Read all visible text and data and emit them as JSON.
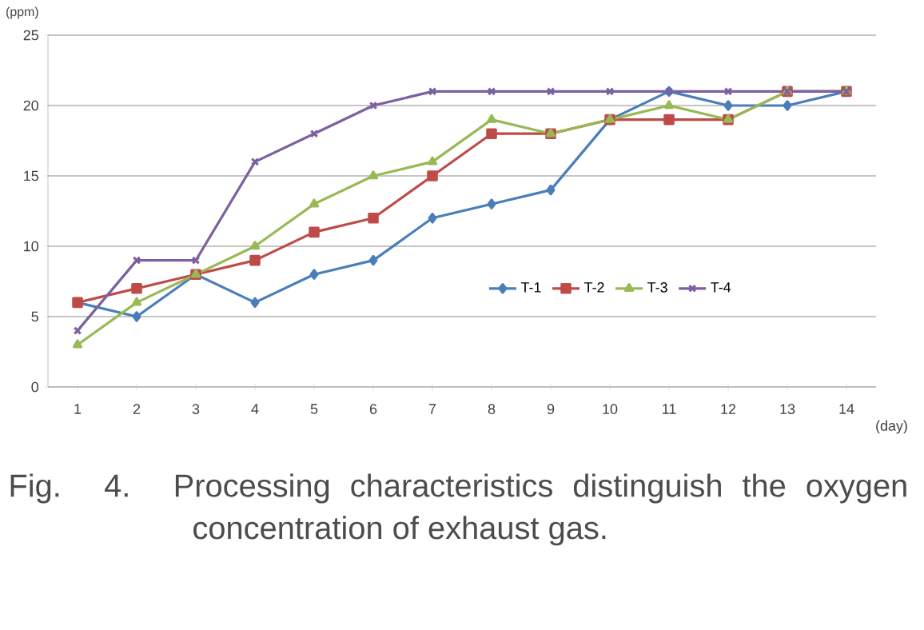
{
  "chart_data": {
    "type": "line",
    "xlabel": "(day)",
    "ylabel": "(ppm)",
    "categories": [
      "1",
      "2",
      "3",
      "4",
      "5",
      "6",
      "7",
      "8",
      "9",
      "10",
      "11",
      "12",
      "13",
      "14"
    ],
    "series": [
      {
        "name": "T-1",
        "color": "#4a7ebb",
        "marker": "diamond",
        "values": [
          6,
          5,
          8,
          6,
          8,
          9,
          12,
          13,
          14,
          19,
          21,
          20,
          20,
          21
        ]
      },
      {
        "name": "T-2",
        "color": "#be4b48",
        "marker": "square",
        "values": [
          6,
          7,
          8,
          9,
          11,
          12,
          15,
          18,
          18,
          19,
          19,
          19,
          21,
          21
        ]
      },
      {
        "name": "T-3",
        "color": "#98b954",
        "marker": "triangle",
        "values": [
          3,
          6,
          8,
          10,
          13,
          15,
          16,
          19,
          18,
          19,
          20,
          19,
          21,
          21
        ]
      },
      {
        "name": "T-4",
        "color": "#7d60a0",
        "marker": "cross",
        "values": [
          4,
          9,
          9,
          16,
          18,
          20,
          21,
          21,
          21,
          21,
          21,
          21,
          21,
          21
        ]
      }
    ],
    "ylim": [
      0,
      25
    ],
    "yticks": [
      0,
      5,
      10,
      15,
      20,
      25
    ],
    "grid": "y",
    "legend": "bottom right",
    "annotations": [
      "Fig. 4. Processing characteristics distinguish the oxygen concentration of exhaust gas."
    ]
  }
}
